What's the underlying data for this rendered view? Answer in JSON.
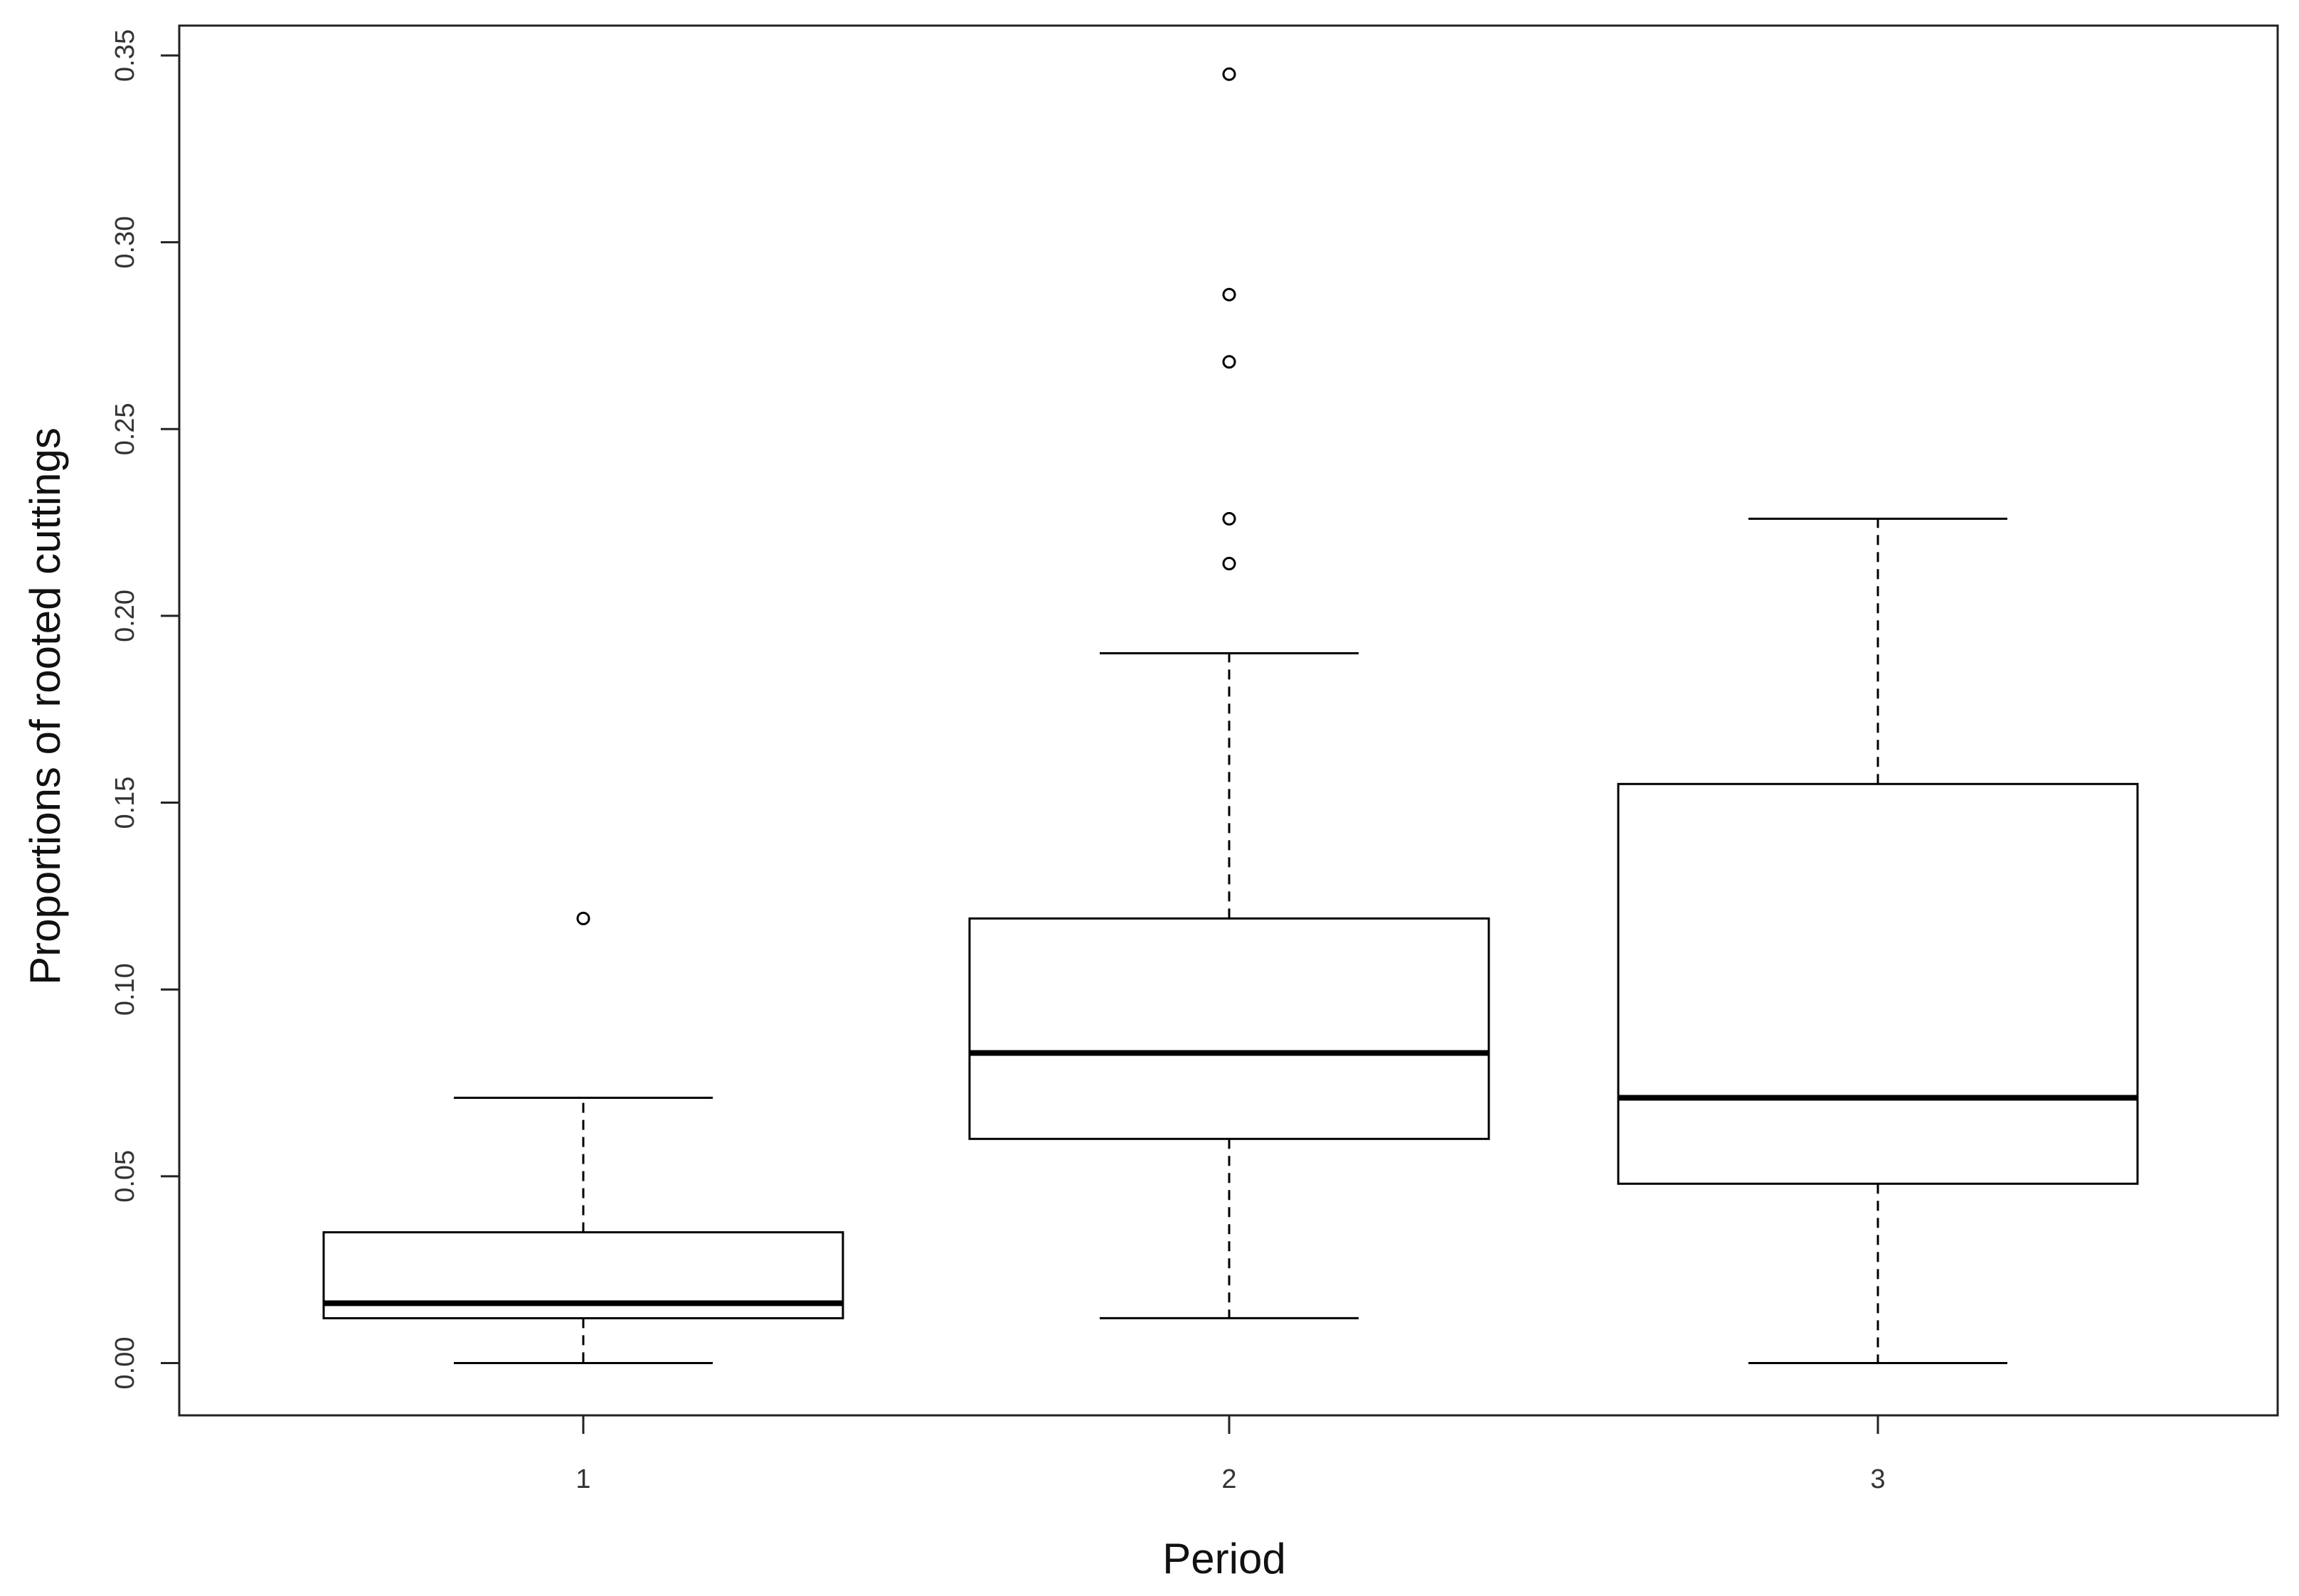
{
  "chart_data": {
    "type": "boxplot",
    "title": "",
    "xlabel": "Period",
    "ylabel": "Proportions of rooted cuttings",
    "categories": [
      "1",
      "2",
      "3"
    ],
    "ylim": [
      -0.014,
      0.358
    ],
    "yticks": [
      "0.00",
      "0.05",
      "0.10",
      "0.15",
      "0.20",
      "0.25",
      "0.30",
      "0.35"
    ],
    "grid": false,
    "legend": "none",
    "boxes": [
      {
        "category": "1",
        "whisker_low": 0.0,
        "q1": 0.012,
        "median": 0.016,
        "q3": 0.035,
        "whisker_high": 0.071,
        "outliers": [
          0.119
        ]
      },
      {
        "category": "2",
        "whisker_low": 0.012,
        "q1": 0.06,
        "median": 0.083,
        "q3": 0.119,
        "whisker_high": 0.19,
        "outliers": [
          0.214,
          0.226,
          0.268,
          0.286,
          0.345
        ]
      },
      {
        "category": "3",
        "whisker_low": 0.0,
        "q1": 0.048,
        "median": 0.071,
        "q3": 0.155,
        "whisker_high": 0.226,
        "outliers": []
      }
    ],
    "colors": {
      "box_fill": "#ffffff",
      "stroke": "#000000",
      "median": "#000000"
    }
  }
}
